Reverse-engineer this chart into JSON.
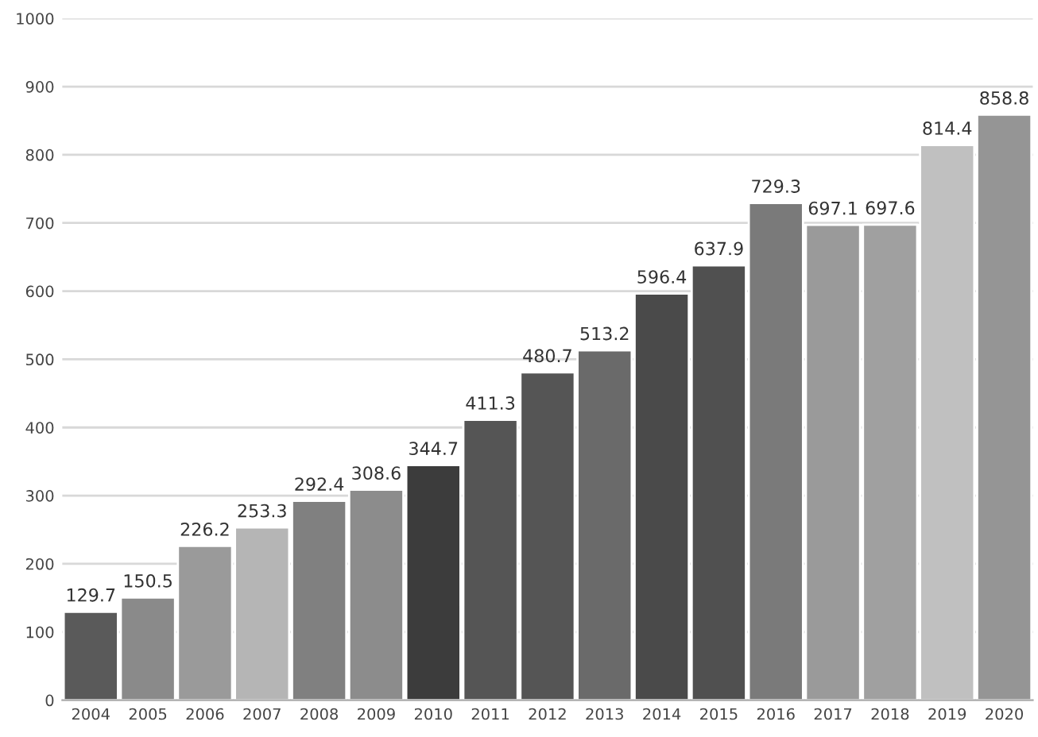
{
  "chart_data": {
    "type": "bar",
    "categories": [
      "2004",
      "2005",
      "2006",
      "2007",
      "2008",
      "2009",
      "2010",
      "2011",
      "2012",
      "2013",
      "2014",
      "2015",
      "2016",
      "2017",
      "2018",
      "2019",
      "2020"
    ],
    "values": [
      129.7,
      150.5,
      226.2,
      253.3,
      292.4,
      308.6,
      344.7,
      411.3,
      480.7,
      513.2,
      596.4,
      637.9,
      729.3,
      697.1,
      697.6,
      814.4,
      858.8
    ],
    "colors": [
      "#5a5a5a",
      "#8a8a8a",
      "#9a9a9a",
      "#b5b5b5",
      "#808080",
      "#8c8c8c",
      "#3c3c3c",
      "#555555",
      "#555555",
      "#6a6a6a",
      "#4a4a4a",
      "#505050",
      "#7a7a7a",
      "#9a9a9a",
      "#a0a0a0",
      "#c0c0c0",
      "#959595"
    ],
    "ylim": [
      0,
      1000
    ],
    "yticks": [
      0,
      100,
      200,
      300,
      400,
      500,
      600,
      700,
      800,
      900,
      1000
    ],
    "grid": "y",
    "data_labels": true
  }
}
